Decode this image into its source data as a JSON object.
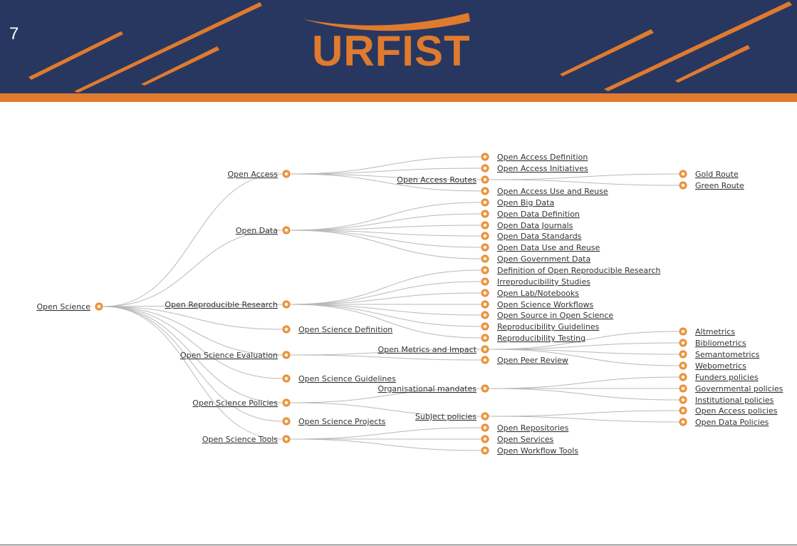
{
  "slide": {
    "number": "7",
    "logo": "URFIST"
  },
  "colors": {
    "banner": "#28375f",
    "accent": "#e07a2e",
    "link": "#333333",
    "edge": "#b9b9b9",
    "node": "#f0a044"
  },
  "mindmap": {
    "root": {
      "id": "root",
      "label": "Open Science"
    },
    "nodes": [
      {
        "id": "oa",
        "label": "Open Access",
        "parent": "root"
      },
      {
        "id": "od",
        "label": "Open Data",
        "parent": "root"
      },
      {
        "id": "orr",
        "label": "Open Reproducible Research",
        "parent": "root"
      },
      {
        "id": "osd",
        "label": "Open Science Definition",
        "parent": "root"
      },
      {
        "id": "ose",
        "label": "Open Science Evaluation",
        "parent": "root"
      },
      {
        "id": "osg",
        "label": "Open Science Guidelines",
        "parent": "root"
      },
      {
        "id": "osp",
        "label": "Open Science Policies",
        "parent": "root"
      },
      {
        "id": "ospr",
        "label": "Open Science Projects",
        "parent": "root"
      },
      {
        "id": "ost",
        "label": "Open Science Tools",
        "parent": "root"
      },
      {
        "id": "oa1",
        "label": "Open Access Definition",
        "parent": "oa"
      },
      {
        "id": "oa2",
        "label": "Open Access Initiatives",
        "parent": "oa"
      },
      {
        "id": "oa3",
        "label": "Open Access Routes",
        "parent": "oa"
      },
      {
        "id": "oa4",
        "label": "Open Access Use and Reuse",
        "parent": "oa"
      },
      {
        "id": "oa3a",
        "label": "Gold Route",
        "parent": "oa3"
      },
      {
        "id": "oa3b",
        "label": "Green Route",
        "parent": "oa3"
      },
      {
        "id": "od1",
        "label": "Open Big Data",
        "parent": "od"
      },
      {
        "id": "od2",
        "label": "Open Data Definition",
        "parent": "od"
      },
      {
        "id": "od3",
        "label": "Open Data Journals",
        "parent": "od"
      },
      {
        "id": "od4",
        "label": "Open Data Standards",
        "parent": "od"
      },
      {
        "id": "od5",
        "label": "Open Data Use and Reuse",
        "parent": "od"
      },
      {
        "id": "od6",
        "label": "Open Government Data",
        "parent": "od"
      },
      {
        "id": "orr1",
        "label": "Definition of Open Reproducible Research",
        "parent": "orr"
      },
      {
        "id": "orr2",
        "label": "Irreproducibility Studies",
        "parent": "orr"
      },
      {
        "id": "orr3",
        "label": "Open Lab/Notebooks",
        "parent": "orr"
      },
      {
        "id": "orr4",
        "label": "Open Science Workflows",
        "parent": "orr"
      },
      {
        "id": "orr5",
        "label": "Open Source in Open Science",
        "parent": "orr"
      },
      {
        "id": "orr6",
        "label": "Reproducibility Guidelines",
        "parent": "orr"
      },
      {
        "id": "orr7",
        "label": "Reproducibility Testing",
        "parent": "orr"
      },
      {
        "id": "ose1",
        "label": "Open Metrics and Impact",
        "parent": "ose"
      },
      {
        "id": "ose2",
        "label": "Open Peer Review",
        "parent": "ose"
      },
      {
        "id": "ose1a",
        "label": "Altmetrics",
        "parent": "ose1"
      },
      {
        "id": "ose1b",
        "label": "Bibliometrics",
        "parent": "ose1"
      },
      {
        "id": "ose1c",
        "label": "Semantometrics",
        "parent": "ose1"
      },
      {
        "id": "ose1d",
        "label": "Webometrics",
        "parent": "ose1"
      },
      {
        "id": "osp1",
        "label": "Organisational mandates",
        "parent": "osp"
      },
      {
        "id": "osp2",
        "label": "Subject policies",
        "parent": "osp"
      },
      {
        "id": "osp1a",
        "label": "Funders policies",
        "parent": "osp1"
      },
      {
        "id": "osp1b",
        "label": "Governmental policies",
        "parent": "osp1"
      },
      {
        "id": "osp1c",
        "label": "Institutional policies",
        "parent": "osp1"
      },
      {
        "id": "osp2a",
        "label": "Open Access policies",
        "parent": "osp2"
      },
      {
        "id": "osp2b",
        "label": "Open Data Policies",
        "parent": "osp2"
      },
      {
        "id": "ost1",
        "label": "Open Repositories",
        "parent": "ost"
      },
      {
        "id": "ost2",
        "label": "Open Services",
        "parent": "ost"
      },
      {
        "id": "ost3",
        "label": "Open Workflow Tools",
        "parent": "ost"
      }
    ]
  }
}
